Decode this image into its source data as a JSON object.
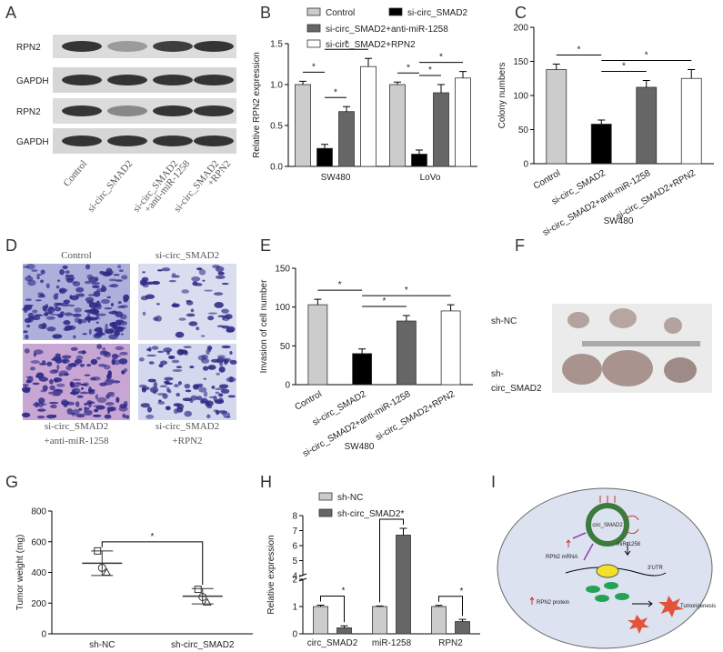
{
  "blot": {
    "panel": "A",
    "rows": [
      "RPN2",
      "GAPDH",
      "RPN2",
      "GAPDH"
    ],
    "lanes": [
      [
        "Control"
      ],
      [
        "si-circ_SMAD2"
      ],
      [
        "si-circ_SMAD2",
        "+anti-miR-1258"
      ],
      [
        "si-circ_SMAD2",
        "+RPN2"
      ]
    ]
  },
  "chart_data": [
    {
      "panel": "B",
      "type": "bar",
      "y_label": "Relative RPN2 expression",
      "categories": [
        "SW480",
        "LoVo"
      ],
      "series": [
        {
          "name": "Control",
          "color": "#cccccc",
          "values": [
            1.0,
            1.0
          ],
          "errors": [
            0.04,
            0.03
          ]
        },
        {
          "name": "si-circ_SMAD2",
          "color": "#000000",
          "values": [
            0.22,
            0.15
          ],
          "errors": [
            0.05,
            0.05
          ]
        },
        {
          "name": "si-circ_SMAD2+anti-miR-1258",
          "color": "#666666",
          "values": [
            0.67,
            0.9
          ],
          "errors": [
            0.06,
            0.1
          ]
        },
        {
          "name": "si-circ_SMAD2+RPN2",
          "color": "#ffffff",
          "values": [
            1.22,
            1.08
          ],
          "errors": [
            0.1,
            0.08
          ]
        }
      ],
      "ylim": [
        0,
        1.5
      ],
      "yticks": [
        {
          "value": 0,
          "label": "0.0"
        },
        {
          "value": 0.5,
          "label": "0.5"
        },
        {
          "value": 1,
          "label": "1.0"
        },
        {
          "value": 1.5,
          "label": "1.5"
        }
      ],
      "legend": "top",
      "annotations": [
        {
          "text": "*",
          "category": "SW480",
          "between": [
            "Control",
            "si-circ_SMAD2"
          ]
        },
        {
          "text": "*",
          "category": "SW480",
          "between": [
            "si-circ_SMAD2",
            "si-circ_SMAD2+anti-miR-1258"
          ]
        },
        {
          "text": "*",
          "category": "SW480",
          "between": [
            "si-circ_SMAD2",
            "si-circ_SMAD2+RPN2"
          ]
        },
        {
          "text": "*",
          "category": "LoVo",
          "between": [
            "Control",
            "si-circ_SMAD2"
          ]
        },
        {
          "text": "*",
          "category": "LoVo",
          "between": [
            "si-circ_SMAD2",
            "si-circ_SMAD2+anti-miR-1258"
          ]
        },
        {
          "text": "*",
          "category": "LoVo",
          "between": [
            "si-circ_SMAD2",
            "si-circ_SMAD2+RPN2"
          ]
        }
      ]
    },
    {
      "panel": "C",
      "type": "bar",
      "y_label": "Colony numbers",
      "x_label": "SW480",
      "categories": [
        "Control",
        "si-circ_SMAD2",
        "si-circ_SMAD2+anti-miR-1258",
        "si-circ_SMAD2+RPN2"
      ],
      "values": [
        138,
        58,
        112,
        125
      ],
      "errors": [
        8,
        6,
        10,
        13
      ],
      "colors": [
        "#cccccc",
        "#000000",
        "#666666",
        "#ffffff"
      ],
      "ylim": [
        0,
        200
      ],
      "yticks": [
        0,
        50,
        100,
        150,
        200
      ],
      "annotations": [
        {
          "text": "*",
          "between": [
            "Control",
            "si-circ_SMAD2"
          ]
        },
        {
          "text": "*",
          "between": [
            "si-circ_SMAD2",
            "si-circ_SMAD2+anti-miR-1258"
          ]
        },
        {
          "text": "*",
          "between": [
            "si-circ_SMAD2",
            "si-circ_SMAD2+RPN2"
          ]
        }
      ]
    },
    {
      "panel": "E",
      "type": "bar",
      "y_label": "Invasion of cell number",
      "x_label": "SW480",
      "categories": [
        "Control",
        "si-circ_SMAD2",
        "si-circ_SMAD2+anti-miR-1258",
        "si-circ_SMAD2+RPN2"
      ],
      "values": [
        103,
        40,
        82,
        95
      ],
      "errors": [
        7,
        6,
        7,
        8
      ],
      "colors": [
        "#cccccc",
        "#000000",
        "#666666",
        "#ffffff"
      ],
      "ylim": [
        0,
        150
      ],
      "yticks": [
        0,
        50,
        100,
        150
      ],
      "annotations": [
        {
          "text": "*",
          "between": [
            "Control",
            "si-circ_SMAD2"
          ]
        },
        {
          "text": "*",
          "between": [
            "si-circ_SMAD2",
            "si-circ_SMAD2+anti-miR-1258"
          ]
        },
        {
          "text": "*",
          "between": [
            "si-circ_SMAD2",
            "si-circ_SMAD2+RPN2"
          ]
        }
      ]
    },
    {
      "panel": "G",
      "type": "dot",
      "y_label": "Tumor weight (mg)",
      "categories": [
        "sh-NC",
        "sh-circ_SMAD2"
      ],
      "points": [
        [
          540,
          430,
          400
        ],
        [
          290,
          240,
          205
        ]
      ],
      "means": [
        460,
        245
      ],
      "sds": [
        80,
        50
      ],
      "ylim": [
        0,
        800
      ],
      "yticks": [
        0,
        200,
        400,
        600,
        800
      ],
      "annotations": [
        {
          "text": "*",
          "between": [
            "sh-NC",
            "sh-circ_SMAD2"
          ]
        }
      ]
    },
    {
      "panel": "H",
      "type": "bar",
      "y_label": "Relative expression",
      "categories": [
        "circ_SMAD2",
        "miR-1258",
        "RPN2"
      ],
      "series": [
        {
          "name": "sh-NC",
          "color": "#cccccc",
          "values": [
            1,
            1,
            1
          ],
          "errors": [
            0.05,
            0.02,
            0.04
          ]
        },
        {
          "name": "sh-circ_SMAD2",
          "color": "#666666",
          "values": [
            0.22,
            6.7,
            0.45
          ],
          "errors": [
            0.07,
            0.45,
            0.08
          ]
        }
      ],
      "ylim": [
        0,
        8
      ],
      "ybreak": [
        2,
        4
      ],
      "yticks": [
        0,
        1,
        2,
        4,
        5,
        6,
        7,
        8
      ],
      "legend": "upper left",
      "annotations": [
        {
          "text": "*",
          "category": "circ_SMAD2",
          "between": [
            "sh-NC",
            "sh-circ_SMAD2"
          ]
        },
        {
          "text": "*",
          "category": "miR-1258",
          "between": [
            "sh-NC",
            "sh-circ_SMAD2"
          ]
        },
        {
          "text": "*",
          "category": "RPN2",
          "between": [
            "sh-NC",
            "sh-circ_SMAD2"
          ]
        }
      ]
    }
  ],
  "micrographs": {
    "panel": "D",
    "labels": [
      [
        "Control"
      ],
      [
        "si-circ_SMAD2"
      ],
      [
        "si-circ_SMAD2",
        "+anti-miR-1258"
      ],
      [
        "si-circ_SMAD2",
        "+RPN2"
      ]
    ]
  },
  "tumor_photo": {
    "panel": "F",
    "labels": [
      [
        "sh-NC"
      ],
      [
        "sh-",
        "circ_SMAD2"
      ]
    ]
  },
  "diagram": {
    "panel": "I",
    "circ": "circ_SMAD2",
    "mirna": "miR-1258",
    "mrna": "RPN2 mRNA",
    "utr": "3'UTR",
    "protein": "RPN2 protein",
    "outcome": "Tumorigenesis"
  }
}
